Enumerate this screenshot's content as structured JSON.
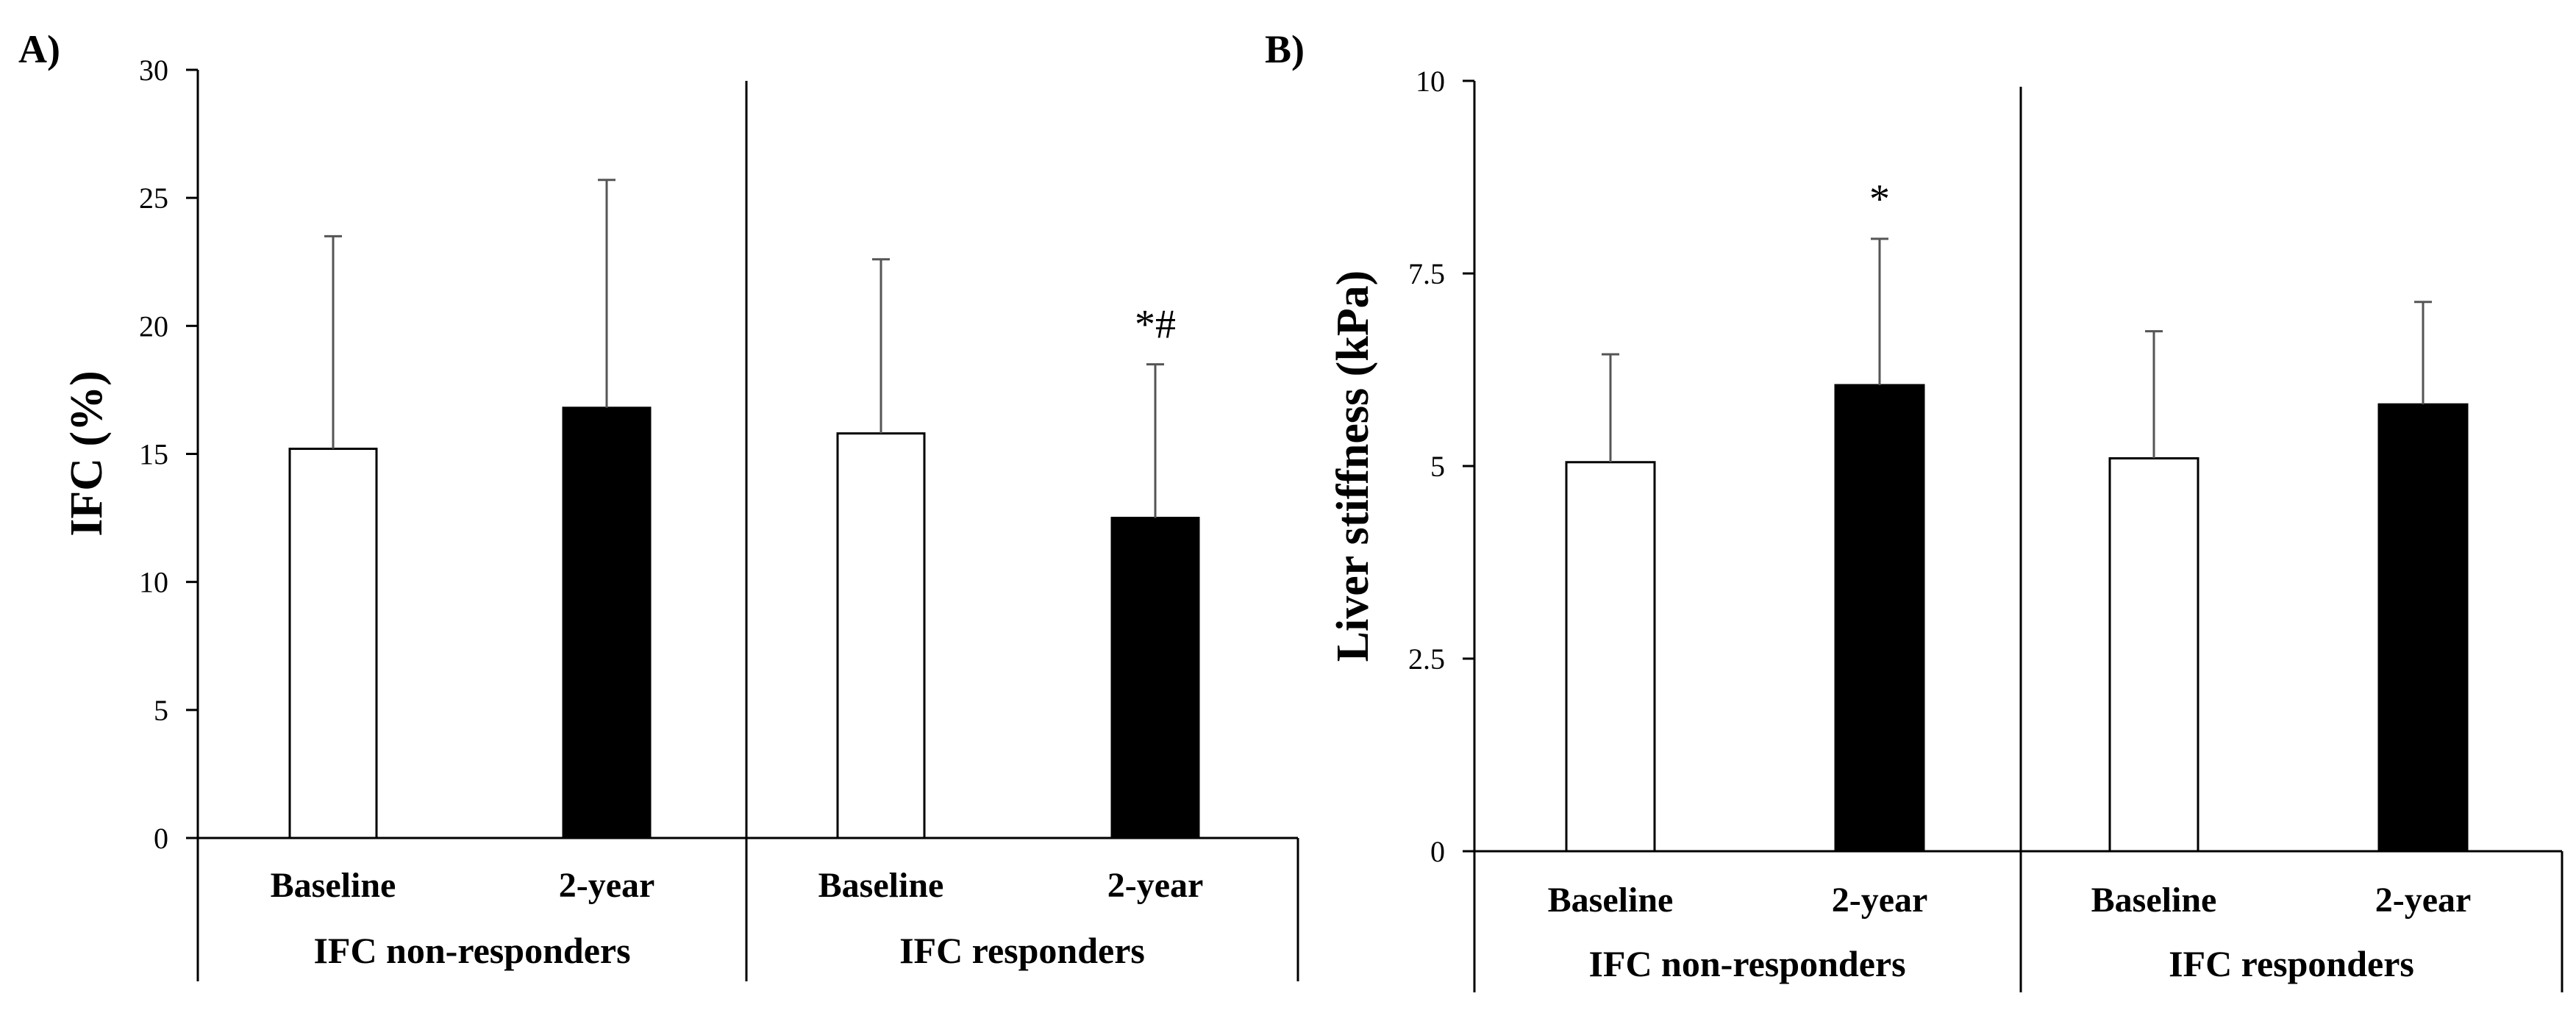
{
  "chart_data": [
    {
      "type": "bar",
      "panel_label": "A)",
      "title": "",
      "xlabel": "",
      "ylabel": "IFC (%)",
      "ylim": [
        0,
        30
      ],
      "yticks": [
        "0",
        "5",
        "10",
        "15",
        "20",
        "25",
        "30"
      ],
      "groups": [
        "IFC non-responders",
        "IFC responders"
      ],
      "categories": [
        "Baseline",
        "2-year",
        "Baseline",
        "2-year"
      ],
      "values": [
        15.2,
        16.8,
        15.8,
        12.5
      ],
      "error_upper": [
        8.3,
        8.9,
        6.8,
        6.0
      ],
      "fills": [
        "#ffffff",
        "#000000",
        "#ffffff",
        "#000000"
      ],
      "annotations": [
        "",
        "",
        "",
        "*#"
      ]
    },
    {
      "type": "bar",
      "panel_label": "B)",
      "title": "",
      "xlabel": "",
      "ylabel": "Liver stiffness (kPa)",
      "ylim": [
        0,
        10
      ],
      "yticks": [
        "0",
        "2.5",
        "5",
        "7.5",
        "10"
      ],
      "groups": [
        "IFC non-responders",
        "IFC responders"
      ],
      "categories": [
        "Baseline",
        "2-year",
        "Baseline",
        "2-year"
      ],
      "values": [
        5.05,
        6.05,
        5.1,
        5.8
      ],
      "error_upper": [
        1.4,
        1.9,
        1.65,
        1.33
      ],
      "fills": [
        "#ffffff",
        "#000000",
        "#ffffff",
        "#000000"
      ],
      "annotations": [
        "",
        "*",
        "",
        ""
      ]
    }
  ]
}
